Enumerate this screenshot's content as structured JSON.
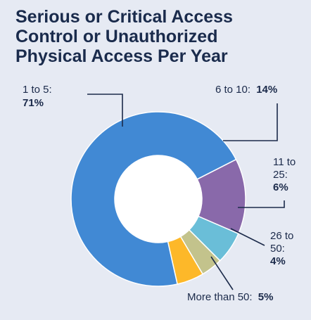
{
  "chart_data": {
    "type": "pie",
    "title_lines": [
      "Serious or Critical Access",
      "Control or Unauthorized",
      "Physical Access Per Year"
    ],
    "donut": true,
    "slices": [
      {
        "label": "1 to 5:",
        "value": 71,
        "value_text": "71%",
        "color": "#4189d4"
      },
      {
        "label": "6 to 10:",
        "value": 14,
        "value_text": "14%",
        "color": "#8969aa"
      },
      {
        "label": "11 to 25:",
        "value": 6,
        "value_text": "6%",
        "color": "#6abed8"
      },
      {
        "label": "26 to 50:",
        "value": 4,
        "value_text": "4%",
        "color": "#c3c38c"
      },
      {
        "label": "More than 50:",
        "value": 5,
        "value_text": "5%",
        "color": "#fdb829"
      }
    ]
  }
}
